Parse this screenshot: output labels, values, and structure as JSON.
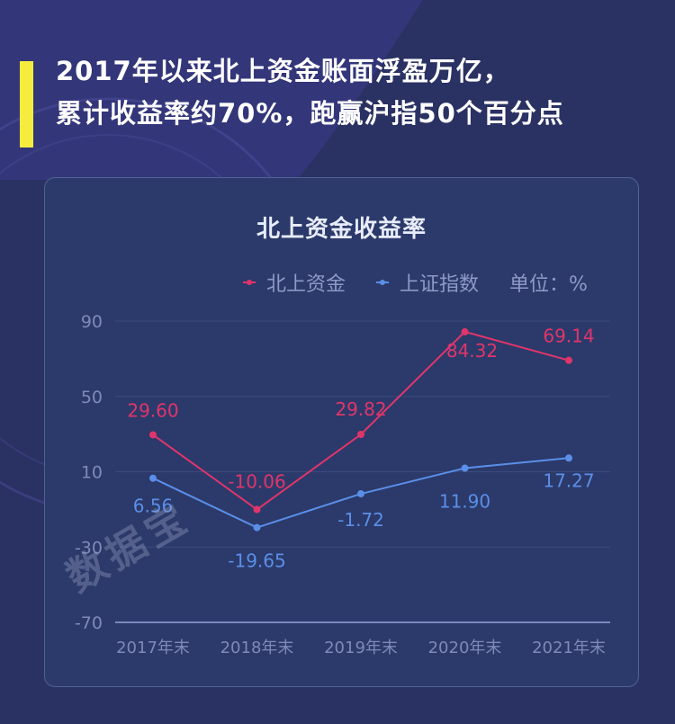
{
  "headline": {
    "line1": "2017年以来北上资金账面浮盈万亿，",
    "line2": "累计收益率约70%，跑赢沪指50个百分点",
    "accent_color": "#f5ec3d"
  },
  "card": {
    "title": "北上资金收益率",
    "legend": [
      {
        "name": "北上资金",
        "color": "#e0356b"
      },
      {
        "name": "上证指数",
        "color": "#5b8ee8"
      }
    ],
    "unit": "单位：%"
  },
  "watermark": "数据宝",
  "chart_data": {
    "type": "line",
    "title": "北上资金收益率",
    "categories": [
      "2017年末",
      "2018年末",
      "2019年末",
      "2020年末",
      "2021年末"
    ],
    "series": [
      {
        "name": "北上资金",
        "color": "#e0356b",
        "values": [
          29.6,
          -10.06,
          29.82,
          84.32,
          69.14
        ],
        "labels": [
          "29.60",
          "-10.06",
          "29.82",
          "84.32",
          "69.14"
        ]
      },
      {
        "name": "上证指数",
        "color": "#5b8ee8",
        "values": [
          6.56,
          -19.65,
          -1.72,
          11.9,
          17.27
        ],
        "labels": [
          "6.56",
          "-19.65",
          "-1.72",
          "11.90",
          "17.27"
        ]
      }
    ],
    "yticks": [
      "90",
      "50",
      "10",
      "-30",
      "-70"
    ],
    "ylim": [
      -70,
      90
    ],
    "xlabel": "",
    "ylabel": "单位：%",
    "grid": true,
    "legend_position": "top-right"
  }
}
